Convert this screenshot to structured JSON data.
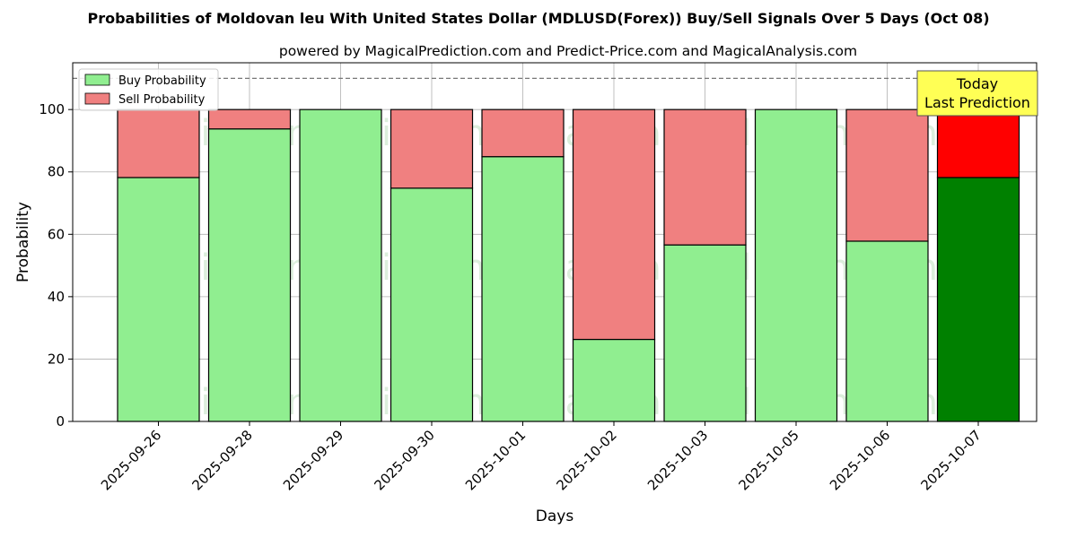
{
  "chart_data": {
    "type": "bar",
    "stacked": true,
    "title": "Probabilities of Moldovan leu With United States Dollar (MDLUSD(Forex)) Buy/Sell Signals Over 5 Days (Oct 08)",
    "subtitle": "powered by MagicalPrediction.com and Predict-Price.com and MagicalAnalysis.com",
    "xlabel": "Days",
    "ylabel": "Probability",
    "ylim": [
      0,
      115
    ],
    "yticks": [
      0,
      20,
      40,
      60,
      80,
      100
    ],
    "grid": true,
    "legend_position": "top-left",
    "reference_line": 110,
    "categories": [
      "2025-09-26",
      "2025-09-28",
      "2025-09-29",
      "2025-09-30",
      "2025-10-01",
      "2025-10-02",
      "2025-10-03",
      "2025-10-05",
      "2025-10-06",
      "2025-10-07"
    ],
    "series": [
      {
        "name": "Buy Probability",
        "color": "#90ee90",
        "values": [
          78.2,
          93.8,
          100,
          74.8,
          84.9,
          26.3,
          56.6,
          100,
          57.8,
          78.2
        ]
      },
      {
        "name": "Sell Probability",
        "color": "#f08080",
        "values": [
          21.8,
          6.2,
          0,
          25.2,
          15.1,
          73.7,
          43.4,
          0,
          42.2,
          21.8
        ]
      }
    ],
    "highlight": {
      "index": 9,
      "buy_color": "#008000",
      "sell_color": "#ff0000"
    },
    "annotation": {
      "lines": [
        "Today",
        "Last Prediction"
      ],
      "background": "#ffff55"
    },
    "watermarks": [
      "MagicalAnalysis.com",
      "MagicalPrediction.com"
    ]
  }
}
